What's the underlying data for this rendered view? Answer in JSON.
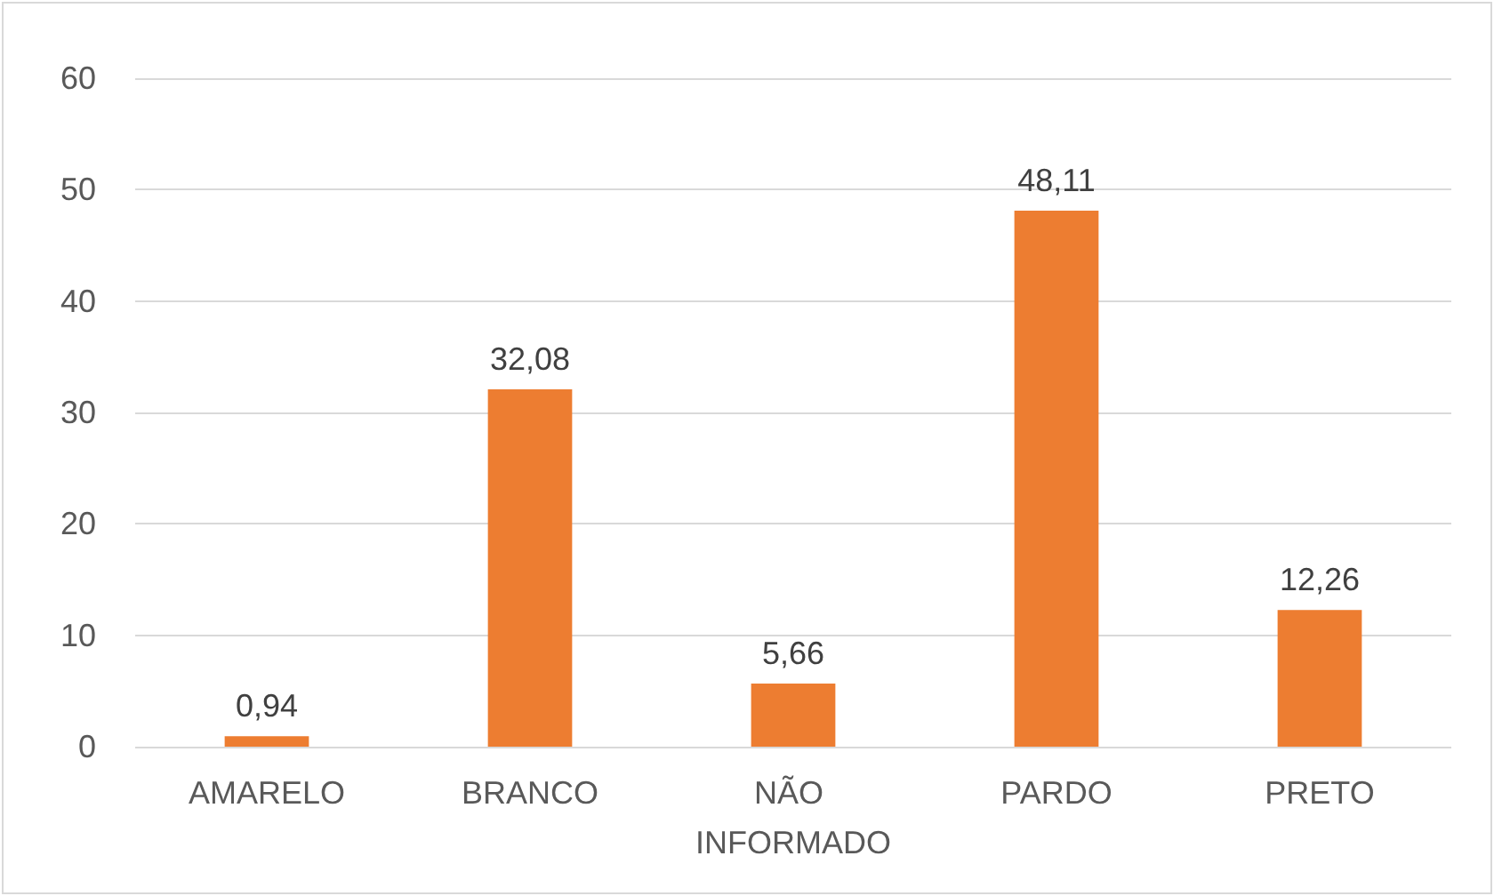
{
  "chart_data": {
    "type": "bar",
    "categories": [
      "AMARELO",
      "BRANCO",
      "NÃO INFORMADO",
      "PARDO",
      "PRETO"
    ],
    "values": [
      0.94,
      32.08,
      5.66,
      48.11,
      12.26
    ],
    "value_labels": [
      "0,94",
      "32,08",
      "5,66",
      "48,11",
      "12,26"
    ],
    "color": "#ed7d31",
    "ylim": [
      0,
      60
    ],
    "yticks": [
      0,
      10,
      20,
      30,
      40,
      50,
      60
    ],
    "grid": "y"
  }
}
